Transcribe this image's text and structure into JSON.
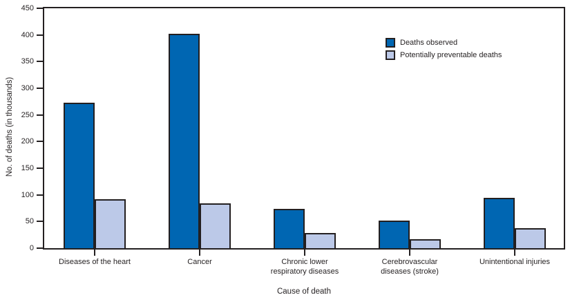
{
  "chart_data": {
    "type": "bar",
    "title": "",
    "xlabel": "Cause of death",
    "ylabel": "No. of deaths (in thousands)",
    "ylim": [
      0,
      450
    ],
    "yticks": [
      0,
      50,
      100,
      150,
      200,
      250,
      300,
      350,
      400,
      450
    ],
    "grid": false,
    "legend_position": "inside-upper-right",
    "frame": true,
    "categories": [
      "Diseases of the heart",
      "Cancer",
      "Chronic lower\nrespiratory diseases",
      "Cerebrovascular\ndiseases (stroke)",
      "Unintentional injuries"
    ],
    "series": [
      {
        "name": "Deaths observed",
        "color": "#0066b2",
        "values": [
          273,
          402,
          74,
          52,
          95
        ]
      },
      {
        "name": "Potentially preventable deaths",
        "color": "#bcc9e8",
        "values": [
          92,
          84,
          29,
          17,
          37
        ]
      }
    ],
    "bar_border_color": "#231f20",
    "axis_color": "#231f20",
    "text_color": "#231f20"
  }
}
